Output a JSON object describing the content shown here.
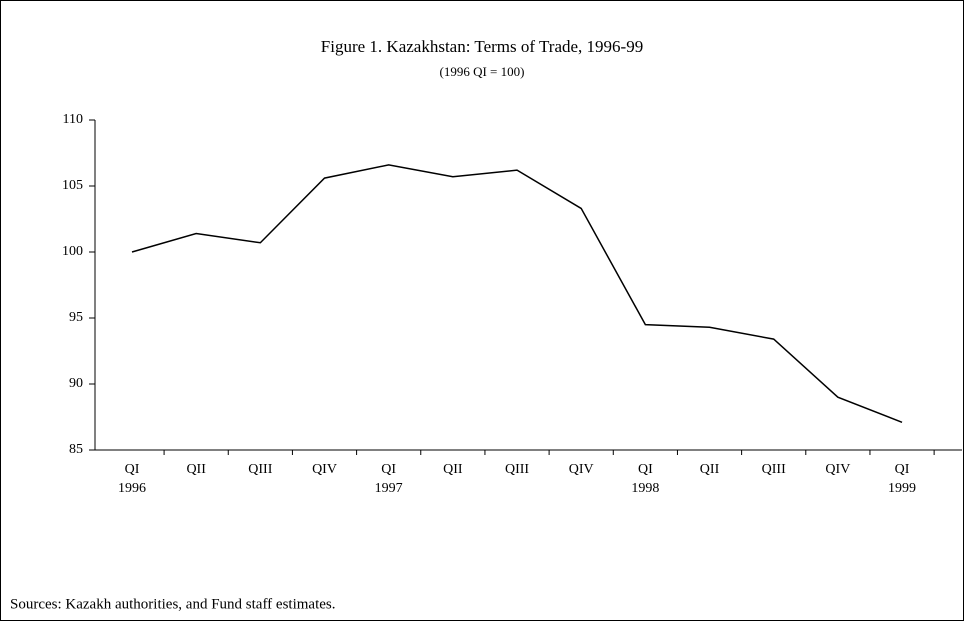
{
  "chart_data": {
    "type": "line",
    "title": "Figure 1. Kazakhstan:  Terms of Trade, 1996-99",
    "subtitle": "(1996 QI = 100)",
    "categories": [
      "QI",
      "QII",
      "QIII",
      "QIV",
      "QI",
      "QII",
      "QIII",
      "QIV",
      "QI",
      "QII",
      "QIII",
      "QIV",
      "QI"
    ],
    "year_labels": [
      "1996",
      null,
      null,
      null,
      "1997",
      null,
      null,
      null,
      "1998",
      null,
      null,
      null,
      "1999"
    ],
    "series": [
      {
        "name": "Terms of trade",
        "color": "#000000",
        "values": [
          100,
          101.4,
          100.7,
          105.6,
          106.6,
          105.7,
          106.2,
          103.3,
          94.5,
          94.3,
          93.4,
          89.0,
          87.1
        ]
      }
    ],
    "ylim": [
      85,
      110
    ],
    "yticks": [
      85,
      90,
      95,
      100,
      105,
      110
    ],
    "source": "Sources: Kazakh authorities, and Fund staff estimates."
  }
}
